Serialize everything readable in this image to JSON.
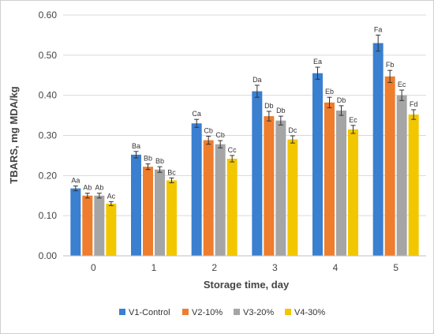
{
  "chart_data": {
    "type": "bar",
    "title": "",
    "xlabel": "Storage time, day",
    "ylabel": "TBARS, mg MDA/kg",
    "ylim": [
      0,
      0.6
    ],
    "yticks": [
      "0.00",
      "0.10",
      "0.20",
      "0.30",
      "0.40",
      "0.50",
      "0.60"
    ],
    "categories": [
      "0",
      "1",
      "2",
      "3",
      "4",
      "5"
    ],
    "grid": true,
    "legend_position": "bottom",
    "series": [
      {
        "name": "V1-Control",
        "color": "#3a7fd0",
        "values": [
          0.168,
          0.252,
          0.33,
          0.41,
          0.455,
          0.53
        ],
        "errors": [
          0.006,
          0.008,
          0.01,
          0.015,
          0.015,
          0.02
        ],
        "labels": [
          "Aa",
          "Ba",
          "Ca",
          "Da",
          "Ea",
          "Fa"
        ]
      },
      {
        "name": "V2-10%",
        "color": "#ee7d2e",
        "values": [
          0.15,
          0.222,
          0.288,
          0.348,
          0.382,
          0.447
        ],
        "errors": [
          0.006,
          0.007,
          0.01,
          0.012,
          0.013,
          0.015
        ],
        "labels": [
          "Ab",
          "Bb",
          "Cb",
          "Db",
          "Eb",
          "Fb"
        ]
      },
      {
        "name": "V3-20%",
        "color": "#a5a5a5",
        "values": [
          0.15,
          0.215,
          0.278,
          0.337,
          0.362,
          0.4
        ],
        "errors": [
          0.006,
          0.007,
          0.009,
          0.011,
          0.012,
          0.013
        ],
        "labels": [
          "Ab",
          "Bb",
          "Cb",
          "Db",
          "Db",
          "Ec"
        ]
      },
      {
        "name": "V4-30%",
        "color": "#f2c700",
        "values": [
          0.13,
          0.188,
          0.242,
          0.29,
          0.315,
          0.352
        ],
        "errors": [
          0.005,
          0.006,
          0.008,
          0.009,
          0.01,
          0.012
        ],
        "labels": [
          "Ac",
          "Bc",
          "Cc",
          "Dc",
          "Ec",
          "Fd"
        ]
      }
    ]
  }
}
